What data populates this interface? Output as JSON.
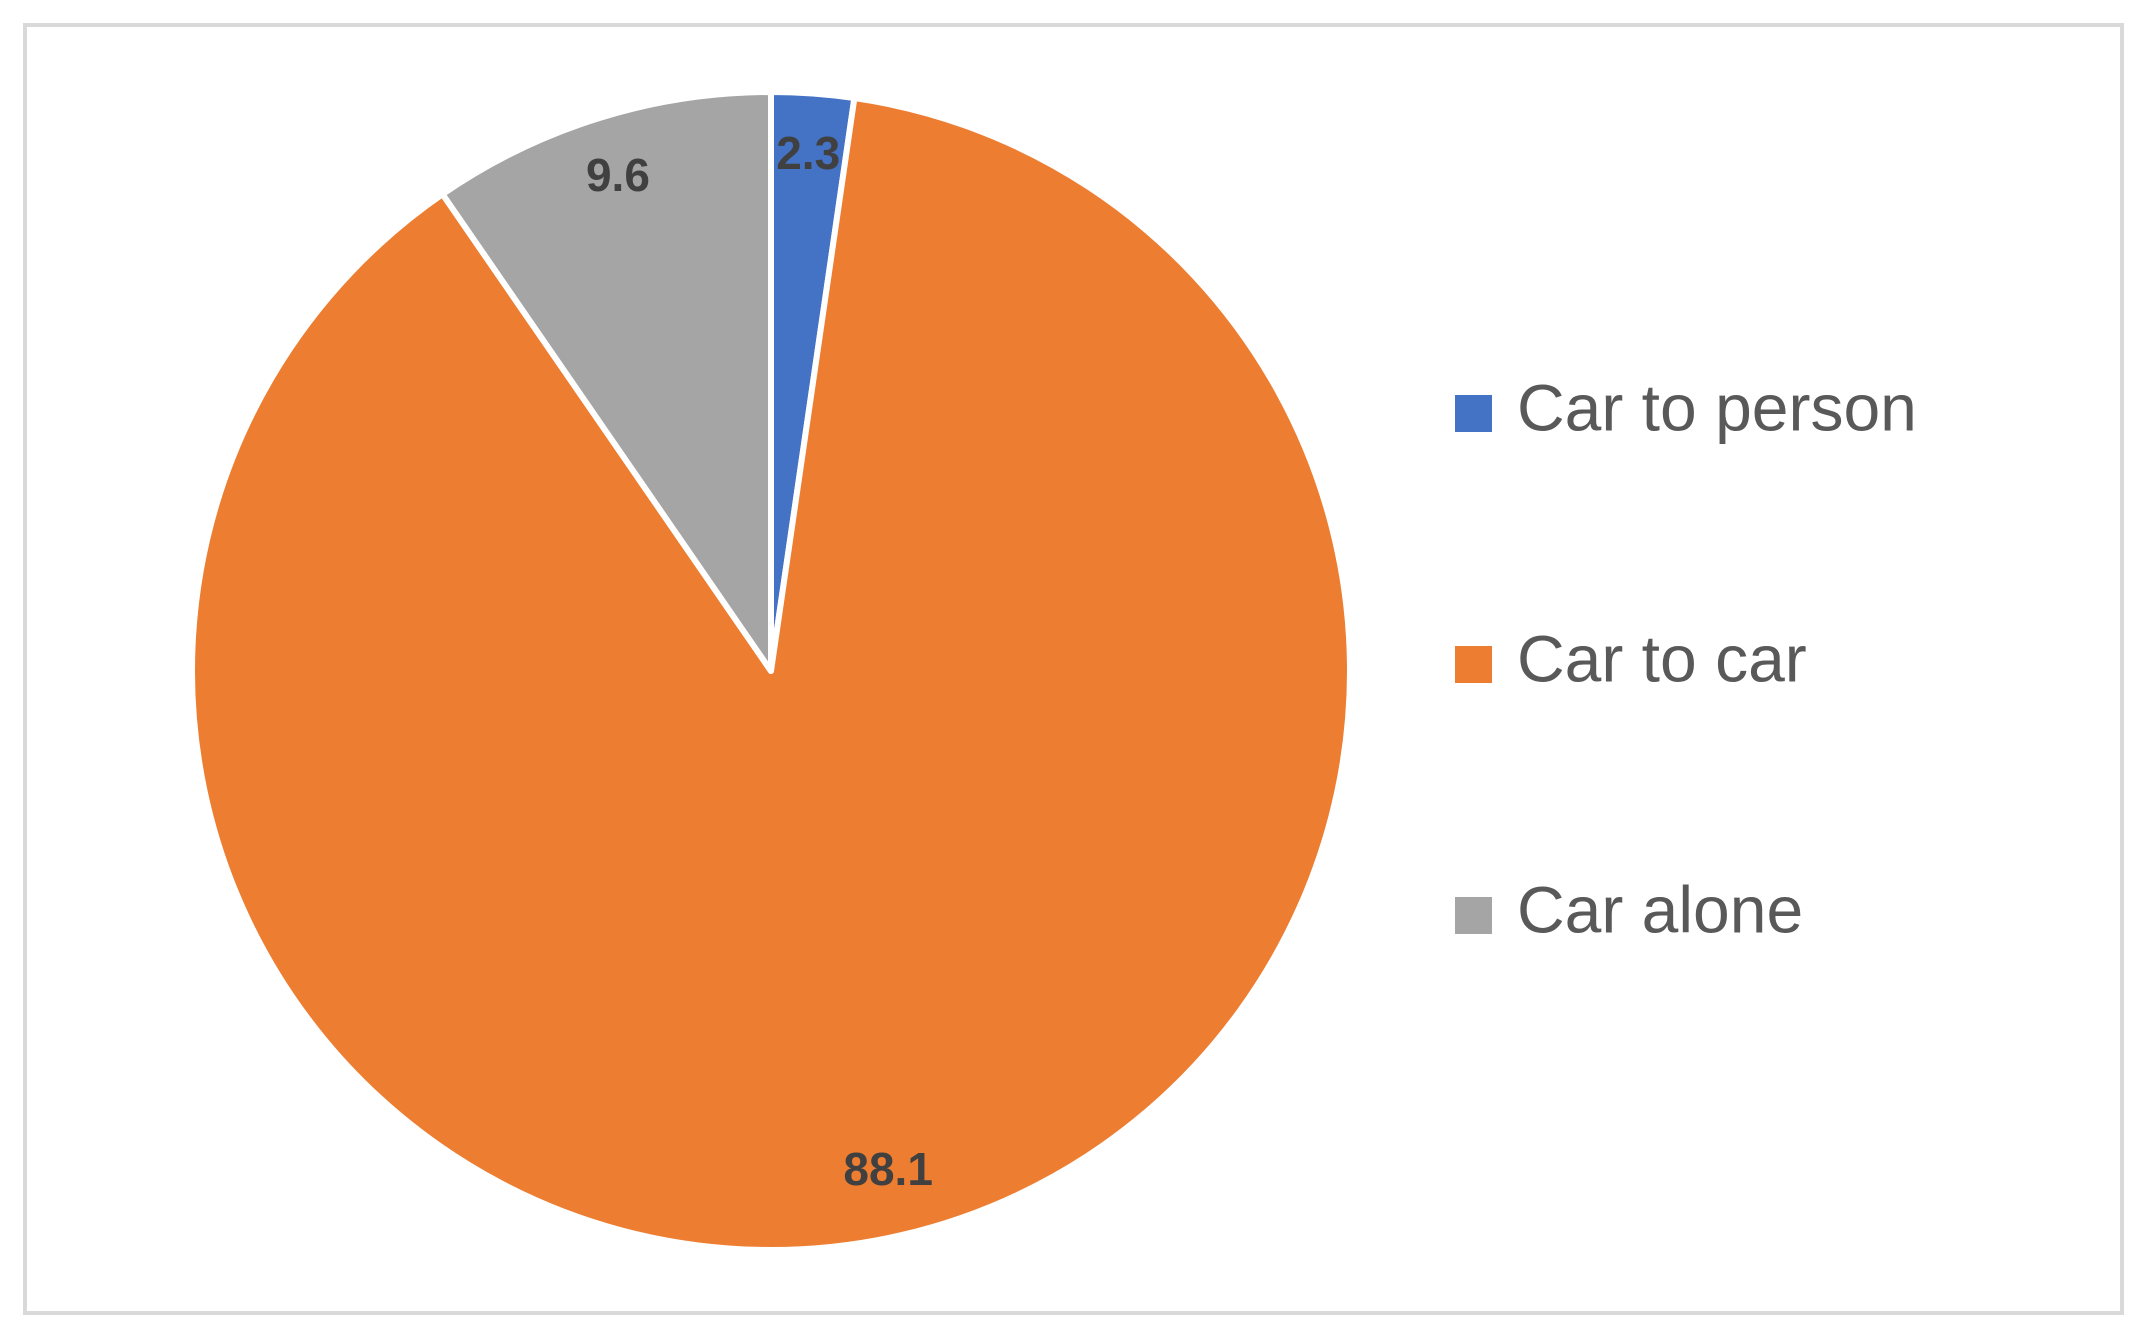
{
  "chart_data": {
    "type": "pie",
    "categories": [
      "Car to person",
      "Car to car",
      "Car alone"
    ],
    "values": [
      2.3,
      88.1,
      9.6
    ],
    "colors": [
      "#4472c4",
      "#ed7d31",
      "#a5a5a5"
    ],
    "legend": "right"
  }
}
